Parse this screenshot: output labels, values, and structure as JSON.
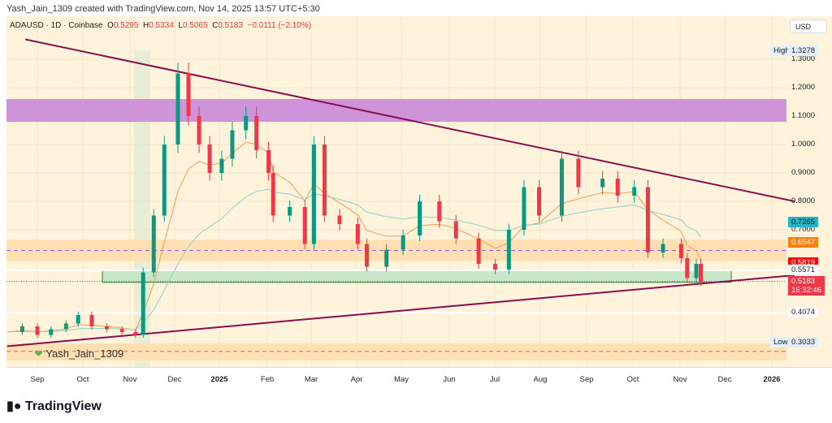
{
  "credit": "Yash_Jain_1309 created with TradingView.com, Nov 14, 2025 13:57 UTC+5:30",
  "legend": {
    "symbol": "ADAUSD · 1D · Coinbase",
    "o_label": "O",
    "o": "0.5295",
    "h_label": "H",
    "h": "0.5334",
    "l_label": "L",
    "l": "0.5065",
    "c_label": "C",
    "c": "0.5183",
    "change": "−0.0111 (−2.10%)"
  },
  "currency": "USD",
  "watermark": "Yash_Jain_1309",
  "logo": "TradingView",
  "colors": {
    "up": "#089981",
    "down": "#f23645",
    "trendline": "#880e4f",
    "resistance_zone": "#ce93d8",
    "support_zone": "#ffe0b2",
    "green_zone": "#c8e6c9"
  },
  "chart_data": {
    "type": "candlestick",
    "ylim": [
      0.22,
      1.42
    ],
    "y_ticks": [
      "1.3000",
      "1.2000",
      "1.1000",
      "1.0000",
      "0.9000",
      "0.8000",
      "0.7000"
    ],
    "x_ticks": [
      "Sep",
      "Oct",
      "Nov",
      "Dec",
      "2025",
      "Feb",
      "Mar",
      "Apr",
      "May",
      "Jun",
      "Jul",
      "Aug",
      "Sep",
      "Oct",
      "Nov",
      "Dec",
      "2026"
    ],
    "price_labels": [
      {
        "label": "High",
        "value": "1.3278",
        "bg": "#e3effd",
        "fg": "#222"
      },
      {
        "value": "0.7265",
        "bg": "#22b5c8",
        "fg": "#131722"
      },
      {
        "value": "0.6547",
        "bg": "#ff7f0e",
        "fg": "#fff"
      },
      {
        "value": "0.5819",
        "bg": "#ff0000",
        "fg": "#fff"
      },
      {
        "value": "0.5571",
        "bg": "#fff",
        "fg": "#222"
      },
      {
        "value": "0.5183",
        "sub": "15:32:46",
        "bg": "#f23645",
        "fg": "#fff"
      },
      {
        "value": "0.4074",
        "bg": "#fff",
        "fg": "#222"
      },
      {
        "label": "Low",
        "value": "0.3033",
        "bg": "#e3effd",
        "fg": "#222"
      }
    ],
    "zones": [
      {
        "from": 1.08,
        "to": 1.16,
        "kind": "resistance"
      },
      {
        "from": 0.59,
        "to": 0.665,
        "kind": "support"
      },
      {
        "from": 0.515,
        "to": 0.557,
        "kind": "green"
      },
      {
        "from": 0.24,
        "to": 0.3,
        "kind": "support"
      }
    ],
    "trendlines": [
      {
        "from": [
          "2024-08-24",
          1.37
        ],
        "to": [
          "2026-01-15",
          0.8
        ]
      },
      {
        "from": [
          "2024-08-12",
          0.29
        ],
        "to": [
          "2026-01-15",
          0.54
        ]
      }
    ],
    "closes": [
      [
        "2024-08-12",
        0.34
      ],
      [
        "2024-08-22",
        0.36
      ],
      [
        "2024-09-01",
        0.33
      ],
      [
        "2024-09-10",
        0.35
      ],
      [
        "2024-09-20",
        0.37
      ],
      [
        "2024-09-28",
        0.4
      ],
      [
        "2024-10-07",
        0.36
      ],
      [
        "2024-10-17",
        0.35
      ],
      [
        "2024-10-27",
        0.34
      ],
      [
        "2024-11-05",
        0.33
      ],
      [
        "2024-11-10",
        0.55
      ],
      [
        "2024-11-17",
        0.75
      ],
      [
        "2024-11-24",
        1.0
      ],
      [
        "2024-12-03",
        1.25
      ],
      [
        "2024-12-10",
        1.1
      ],
      [
        "2024-12-17",
        1.0
      ],
      [
        "2024-12-24",
        0.9
      ],
      [
        "2025-01-01",
        0.95
      ],
      [
        "2025-01-08",
        1.05
      ],
      [
        "2025-01-17",
        1.1
      ],
      [
        "2025-01-24",
        0.98
      ],
      [
        "2025-02-01",
        0.9
      ],
      [
        "2025-02-04",
        0.75
      ],
      [
        "2025-02-15",
        0.78
      ],
      [
        "2025-02-25",
        0.65
      ],
      [
        "2025-03-03",
        1.0
      ],
      [
        "2025-03-10",
        0.75
      ],
      [
        "2025-03-20",
        0.72
      ],
      [
        "2025-04-01",
        0.65
      ],
      [
        "2025-04-07",
        0.57
      ],
      [
        "2025-04-20",
        0.63
      ],
      [
        "2025-05-01",
        0.68
      ],
      [
        "2025-05-12",
        0.8
      ],
      [
        "2025-05-25",
        0.73
      ],
      [
        "2025-06-05",
        0.67
      ],
      [
        "2025-06-20",
        0.58
      ],
      [
        "2025-07-01",
        0.56
      ],
      [
        "2025-07-10",
        0.7
      ],
      [
        "2025-07-20",
        0.85
      ],
      [
        "2025-07-30",
        0.75
      ],
      [
        "2025-08-14",
        0.95
      ],
      [
        "2025-08-25",
        0.85
      ],
      [
        "2025-09-10",
        0.88
      ],
      [
        "2025-09-20",
        0.82
      ],
      [
        "2025-10-01",
        0.85
      ],
      [
        "2025-10-10",
        0.62
      ],
      [
        "2025-10-20",
        0.65
      ],
      [
        "2025-11-01",
        0.6
      ],
      [
        "2025-11-05",
        0.53
      ],
      [
        "2025-11-11",
        0.58
      ],
      [
        "2025-11-14",
        0.5183
      ]
    ]
  }
}
